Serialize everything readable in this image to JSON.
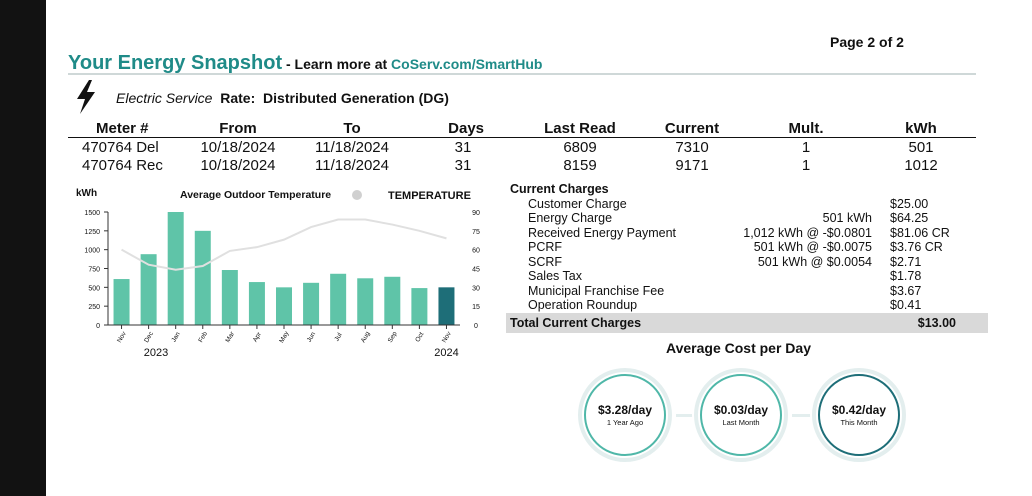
{
  "page_number": "Page 2 of 2",
  "snapshot": {
    "title": "Your Energy Snapshot",
    "learn_prefix": " - Learn more at ",
    "learn_url": "CoServ.com/SmartHub"
  },
  "service": {
    "icon": "lightning-bolt-icon",
    "name": "Electric Service",
    "rate_label": "Rate:",
    "rate_value": "Distributed Generation (DG)"
  },
  "meters": {
    "headers": [
      "Meter #",
      "From",
      "To",
      "Days",
      "Last Read",
      "Current",
      "Mult.",
      "kWh"
    ],
    "rows": [
      [
        "470764 Del",
        "10/18/2024",
        "11/18/2024",
        "31",
        "6809",
        "7310",
        "1",
        "501"
      ],
      [
        "470764 Rec",
        "10/18/2024",
        "11/18/2024",
        "31",
        "8159",
        "9171",
        "1",
        "1012"
      ]
    ]
  },
  "chart_data": {
    "type": "bar",
    "ylabel": "kWh",
    "legend_label": "Average Outdoor Temperature",
    "y2label": "TEMPERATURE",
    "categories": [
      "Nov",
      "Dec",
      "Jan",
      "Feb",
      "Mar",
      "Apr",
      "May",
      "Jun",
      "Jul",
      "Aug",
      "Sep",
      "Oct",
      "Nov"
    ],
    "values": [
      610,
      940,
      1500,
      1250,
      730,
      570,
      500,
      560,
      680,
      620,
      640,
      490,
      500
    ],
    "temperature": [
      60,
      48,
      44,
      47,
      59,
      62,
      68,
      78,
      84,
      84,
      80,
      75,
      69
    ],
    "ylim": [
      0,
      1500
    ],
    "yticks": [
      "0",
      "250",
      "500",
      "750",
      "1000",
      "1250",
      "1500"
    ],
    "y2lim": [
      0,
      90
    ],
    "y2ticks": [
      "0",
      "15",
      "30",
      "45",
      "60",
      "75",
      "90"
    ],
    "start_year": "2023",
    "end_year": "2024",
    "colors": {
      "bar": "#5fc4a8",
      "current_bar": "#1e6e78",
      "temperature_line": "#e0e0e0",
      "legend_dot": "#d0d0d0"
    }
  },
  "charges": {
    "title": "Current Charges",
    "items": [
      {
        "label": "Customer Charge",
        "detail": "",
        "amount": "$25.00"
      },
      {
        "label": "Energy Charge",
        "detail": "501 kWh",
        "amount": "$64.25"
      },
      {
        "label": "Received Energy Payment",
        "detail": "1,012 kWh  @ -$0.0801",
        "amount": "$81.06 CR"
      },
      {
        "label": "PCRF",
        "detail": "501 kWh  @ -$0.0075",
        "amount": "$3.76 CR"
      },
      {
        "label": "SCRF",
        "detail": "501 kWh  @ $0.0054",
        "amount": "$2.71"
      },
      {
        "label": "Sales Tax",
        "detail": "",
        "amount": "$1.78"
      },
      {
        "label": "Municipal Franchise Fee",
        "detail": "",
        "amount": "$3.67"
      },
      {
        "label": "Operation Roundup",
        "detail": "",
        "amount": "$0.41"
      }
    ],
    "total_label": "Total Current Charges",
    "total_amount": "$13.00"
  },
  "average_cost": {
    "title": "Average Cost per Day",
    "items": [
      {
        "value": "$3.28/day",
        "label": "1 Year Ago"
      },
      {
        "value": "$0.03/day",
        "label": "Last Month"
      },
      {
        "value": "$0.42/day",
        "label": "This Month"
      }
    ]
  }
}
